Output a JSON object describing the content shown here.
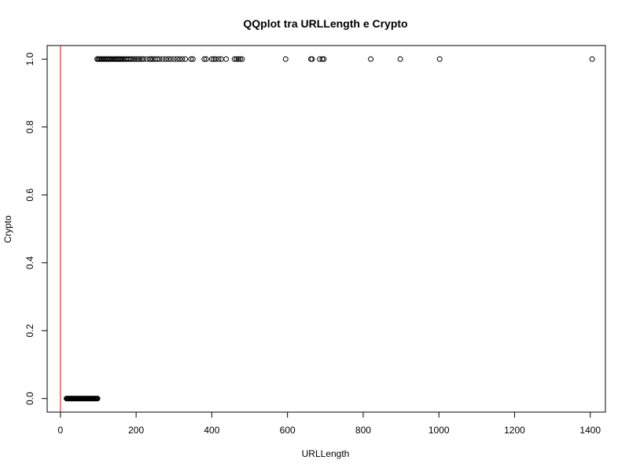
{
  "chart_data": {
    "type": "scatter",
    "title": "QQplot tra URLLength e Crypto",
    "xlabel": "URLLength",
    "ylabel": "Crypto",
    "xlim": [
      -35,
      1440
    ],
    "ylim": [
      -0.04,
      1.04
    ],
    "x_ticks": [
      0,
      200,
      400,
      600,
      800,
      1000,
      1200,
      1400
    ],
    "x_tick_labels": [
      "0",
      "200",
      "400",
      "600",
      "800",
      "1000",
      "1200",
      "1400"
    ],
    "y_ticks": [
      0.0,
      0.2,
      0.4,
      0.6,
      0.8,
      1.0
    ],
    "y_tick_labels": [
      "0.0",
      "0.2",
      "0.4",
      "0.6",
      "0.8",
      "1.0"
    ],
    "grid": false,
    "reference_line": {
      "type": "vertical",
      "x": 0,
      "color": "#ff0000"
    },
    "series": [
      {
        "marker": "open-circle",
        "color": "#000000",
        "points": [
          [
            16,
            0
          ],
          [
            18,
            0
          ],
          [
            20,
            0
          ],
          [
            22,
            0
          ],
          [
            24,
            0
          ],
          [
            26,
            0
          ],
          [
            28,
            0
          ],
          [
            30,
            0
          ],
          [
            32,
            0
          ],
          [
            34,
            0
          ],
          [
            36,
            0
          ],
          [
            38,
            0
          ],
          [
            40,
            0
          ],
          [
            42,
            0
          ],
          [
            44,
            0
          ],
          [
            46,
            0
          ],
          [
            48,
            0
          ],
          [
            50,
            0
          ],
          [
            52,
            0
          ],
          [
            54,
            0
          ],
          [
            56,
            0
          ],
          [
            58,
            0
          ],
          [
            60,
            0
          ],
          [
            62,
            0
          ],
          [
            64,
            0
          ],
          [
            66,
            0
          ],
          [
            68,
            0
          ],
          [
            70,
            0
          ],
          [
            72,
            0
          ],
          [
            74,
            0
          ],
          [
            76,
            0
          ],
          [
            78,
            0
          ],
          [
            80,
            0
          ],
          [
            82,
            0
          ],
          [
            84,
            0
          ],
          [
            86,
            0
          ],
          [
            88,
            0
          ],
          [
            90,
            0
          ],
          [
            92,
            0
          ],
          [
            94,
            0
          ],
          [
            96,
            0
          ],
          [
            98,
            0
          ],
          [
            97,
            1
          ],
          [
            100,
            1
          ],
          [
            103,
            1
          ],
          [
            106,
            1
          ],
          [
            109,
            1
          ],
          [
            112,
            1
          ],
          [
            115,
            1
          ],
          [
            118,
            1
          ],
          [
            121,
            1
          ],
          [
            124,
            1
          ],
          [
            127,
            1
          ],
          [
            130,
            1
          ],
          [
            133,
            1
          ],
          [
            136,
            1
          ],
          [
            139,
            1
          ],
          [
            142,
            1
          ],
          [
            145,
            1
          ],
          [
            148,
            1
          ],
          [
            151,
            1
          ],
          [
            154,
            1
          ],
          [
            157,
            1
          ],
          [
            160,
            1
          ],
          [
            163,
            1
          ],
          [
            166,
            1
          ],
          [
            170,
            1
          ],
          [
            174,
            1
          ],
          [
            178,
            1
          ],
          [
            182,
            1
          ],
          [
            186,
            1
          ],
          [
            190,
            1
          ],
          [
            195,
            1
          ],
          [
            200,
            1
          ],
          [
            205,
            1
          ],
          [
            210,
            1
          ],
          [
            215,
            1
          ],
          [
            220,
            1
          ],
          [
            228,
            1
          ],
          [
            236,
            1
          ],
          [
            240,
            1
          ],
          [
            244,
            1
          ],
          [
            250,
            1
          ],
          [
            256,
            1
          ],
          [
            262,
            1
          ],
          [
            270,
            1
          ],
          [
            278,
            1
          ],
          [
            285,
            1
          ],
          [
            292,
            1
          ],
          [
            300,
            1
          ],
          [
            308,
            1
          ],
          [
            315,
            1
          ],
          [
            322,
            1
          ],
          [
            330,
            1
          ],
          [
            345,
            1
          ],
          [
            350,
            1
          ],
          [
            380,
            1
          ],
          [
            385,
            1
          ],
          [
            400,
            1
          ],
          [
            405,
            1
          ],
          [
            410,
            1
          ],
          [
            418,
            1
          ],
          [
            425,
            1
          ],
          [
            438,
            1
          ],
          [
            460,
            1
          ],
          [
            465,
            1
          ],
          [
            470,
            1
          ],
          [
            475,
            1
          ],
          [
            480,
            1
          ],
          [
            595,
            1
          ],
          [
            662,
            1
          ],
          [
            665,
            1
          ],
          [
            685,
            1
          ],
          [
            692,
            1
          ],
          [
            696,
            1
          ],
          [
            820,
            1
          ],
          [
            898,
            1
          ],
          [
            1002,
            1
          ],
          [
            1405,
            1
          ]
        ]
      }
    ]
  }
}
